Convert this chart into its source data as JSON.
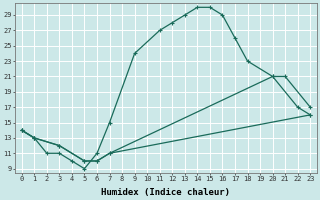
{
  "xlabel": "Humidex (Indice chaleur)",
  "bg_color": "#cce8e8",
  "grid_color": "#b0d4d4",
  "line_color": "#1a6b5a",
  "xlim": [
    -0.5,
    23.5
  ],
  "ylim": [
    8.5,
    30.5
  ],
  "xticks": [
    0,
    1,
    2,
    3,
    4,
    5,
    6,
    7,
    8,
    9,
    10,
    11,
    12,
    13,
    14,
    15,
    16,
    17,
    18,
    19,
    20,
    21,
    22,
    23
  ],
  "yticks": [
    9,
    11,
    13,
    15,
    17,
    19,
    21,
    23,
    25,
    27,
    29
  ],
  "curve1_x": [
    0,
    1,
    2,
    3,
    4,
    5,
    6,
    7,
    9,
    11,
    12,
    13,
    14,
    15,
    16,
    17,
    18,
    20,
    22,
    23
  ],
  "curve1_y": [
    14,
    13,
    11,
    11,
    10,
    9,
    11,
    15,
    24,
    27,
    28,
    29,
    30,
    30,
    29,
    26,
    23,
    21,
    17,
    16
  ],
  "curve2_x": [
    0,
    1,
    3,
    5,
    6,
    7,
    20,
    21,
    23
  ],
  "curve2_y": [
    14,
    13,
    12,
    10,
    10,
    11,
    21,
    21,
    17
  ],
  "curve3_x": [
    0,
    1,
    3,
    5,
    6,
    7,
    23
  ],
  "curve3_y": [
    14,
    13,
    12,
    10,
    10,
    11,
    16
  ]
}
